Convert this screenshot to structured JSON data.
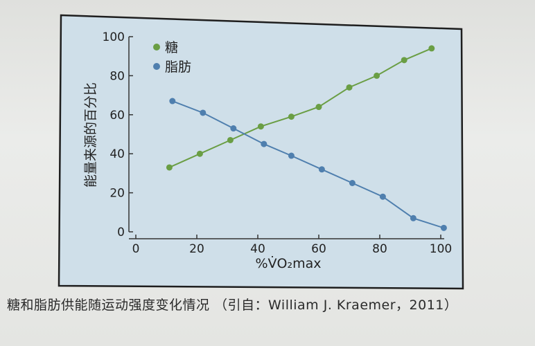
{
  "caption": "糖和脂肪供能随运动强度变化情况 （引自：William J. Kraemer，2011）",
  "chart_data": {
    "type": "line",
    "xlabel": "%V̇O₂max",
    "ylabel": "能量来源的百分比",
    "xlim": [
      0,
      100
    ],
    "ylim": [
      0,
      100
    ],
    "x_ticks": [
      "0",
      "20",
      "40",
      "60",
      "80",
      "100"
    ],
    "y_ticks": [
      "0",
      "20",
      "40",
      "60",
      "80",
      "100"
    ],
    "legend_position": "top-left",
    "grid": false,
    "series": [
      {
        "name": "糖",
        "color": "#6a9e44",
        "points": [
          [
            11,
            33
          ],
          [
            21,
            40
          ],
          [
            31,
            47
          ],
          [
            41,
            54
          ],
          [
            51,
            59
          ],
          [
            60,
            64
          ],
          [
            70,
            74
          ],
          [
            79,
            80
          ],
          [
            88,
            88
          ],
          [
            97,
            94
          ]
        ]
      },
      {
        "name": "脂肪",
        "color": "#4f7fae",
        "points": [
          [
            12,
            67
          ],
          [
            22,
            61
          ],
          [
            32,
            53
          ],
          [
            42,
            45
          ],
          [
            51,
            39
          ],
          [
            61,
            32
          ],
          [
            71,
            25
          ],
          [
            81,
            18
          ],
          [
            91,
            7
          ],
          [
            101,
            2
          ]
        ]
      }
    ]
  }
}
